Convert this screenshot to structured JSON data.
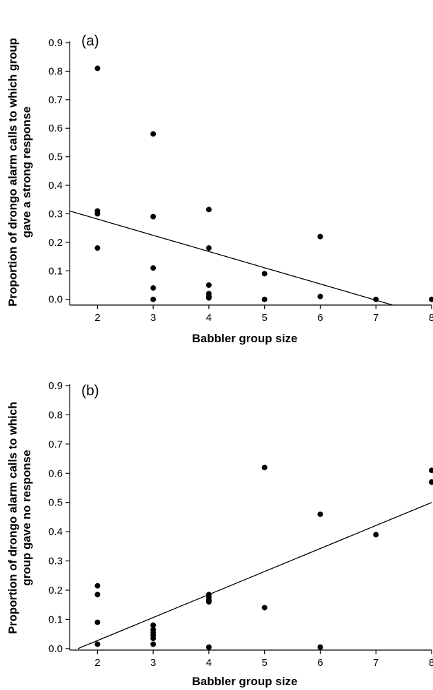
{
  "chart_data": [
    {
      "type": "scatter",
      "panel_label": "(a)",
      "ylabel_lines": [
        "Proportion of drongo alarm calls to which group",
        "gave a strong response"
      ],
      "xlabel": "Babbler group size",
      "xlim": [
        1.5,
        8.0
      ],
      "ylim": [
        -0.02,
        0.9
      ],
      "xticks": [
        2,
        3,
        4,
        5,
        6,
        7,
        8
      ],
      "yticks": [
        "0.0",
        "0.1",
        "0.2",
        "0.3",
        "0.4",
        "0.5",
        "0.6",
        "0.7",
        "0.8",
        "0.9"
      ],
      "points": [
        {
          "x": 2,
          "y": 0.81
        },
        {
          "x": 2,
          "y": 0.31
        },
        {
          "x": 2,
          "y": 0.3
        },
        {
          "x": 2,
          "y": 0.18
        },
        {
          "x": 3,
          "y": 0.58
        },
        {
          "x": 3,
          "y": 0.29
        },
        {
          "x": 3,
          "y": 0.11
        },
        {
          "x": 3,
          "y": 0.04
        },
        {
          "x": 3,
          "y": 0.0
        },
        {
          "x": 4,
          "y": 0.315
        },
        {
          "x": 4,
          "y": 0.18
        },
        {
          "x": 4,
          "y": 0.05
        },
        {
          "x": 4,
          "y": 0.02
        },
        {
          "x": 4,
          "y": 0.01
        },
        {
          "x": 4,
          "y": 0.005
        },
        {
          "x": 5,
          "y": 0.09
        },
        {
          "x": 5,
          "y": 0.0
        },
        {
          "x": 6,
          "y": 0.22
        },
        {
          "x": 6,
          "y": 0.01
        },
        {
          "x": 7,
          "y": 0.0
        },
        {
          "x": 8,
          "y": 0.0
        }
      ],
      "fit_line": {
        "x": [
          1.5,
          7.3
        ],
        "y": [
          0.31,
          -0.02
        ]
      }
    },
    {
      "type": "scatter",
      "panel_label": "(b)",
      "ylabel_lines": [
        "Proportion of drongo alarm calls to which",
        "group gave no response"
      ],
      "xlabel": "Babbler group size",
      "xlim": [
        1.5,
        8.0
      ],
      "ylim": [
        -0.005,
        0.9
      ],
      "xticks": [
        2,
        3,
        4,
        5,
        6,
        7,
        8
      ],
      "yticks": [
        "0.0",
        "0.1",
        "0.2",
        "0.3",
        "0.4",
        "0.5",
        "0.6",
        "0.7",
        "0.8",
        "0.9"
      ],
      "points": [
        {
          "x": 2,
          "y": 0.215
        },
        {
          "x": 2,
          "y": 0.185
        },
        {
          "x": 2,
          "y": 0.09
        },
        {
          "x": 2,
          "y": 0.015
        },
        {
          "x": 3,
          "y": 0.08
        },
        {
          "x": 3,
          "y": 0.065
        },
        {
          "x": 3,
          "y": 0.055
        },
        {
          "x": 3,
          "y": 0.045
        },
        {
          "x": 3,
          "y": 0.035
        },
        {
          "x": 3,
          "y": 0.015
        },
        {
          "x": 4,
          "y": 0.185
        },
        {
          "x": 4,
          "y": 0.175
        },
        {
          "x": 4,
          "y": 0.165
        },
        {
          "x": 4,
          "y": 0.16
        },
        {
          "x": 4,
          "y": 0.005
        },
        {
          "x": 5,
          "y": 0.62
        },
        {
          "x": 5,
          "y": 0.14
        },
        {
          "x": 6,
          "y": 0.46
        },
        {
          "x": 6,
          "y": 0.005
        },
        {
          "x": 7,
          "y": 0.39
        },
        {
          "x": 8,
          "y": 0.61
        },
        {
          "x": 8,
          "y": 0.57
        }
      ],
      "fit_line": {
        "x": [
          1.65,
          8.0
        ],
        "y": [
          0.0,
          0.5
        ]
      }
    }
  ]
}
